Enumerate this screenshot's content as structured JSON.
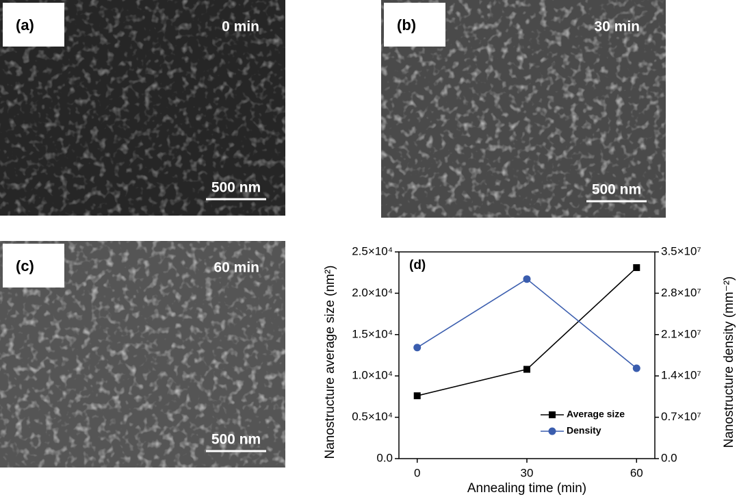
{
  "panels": [
    {
      "label": "(a)",
      "time": "0 min",
      "scale": "500 nm"
    },
    {
      "label": "(b)",
      "time": "30 min",
      "scale": "500 nm"
    },
    {
      "label": "(c)",
      "time": "60 min",
      "scale": "500 nm"
    }
  ],
  "chart_data": {
    "type": "line",
    "panel_label": "(d)",
    "x_label": "Annealing time (min)",
    "y_label": "Nanostructure average size (nm²)",
    "y2_label": "Nanostructure density (mm⁻²)",
    "x": [
      0,
      30,
      60
    ],
    "xlim": [
      -5,
      65
    ],
    "xticks": [
      0,
      30,
      60
    ],
    "ylim": [
      0,
      25000
    ],
    "yticks": [
      {
        "value": 0,
        "label": "0.0"
      },
      {
        "value": 5000,
        "label": "0.5×10⁴"
      },
      {
        "value": 10000,
        "label": "1.0×10⁴"
      },
      {
        "value": 15000,
        "label": "1.5×10⁴"
      },
      {
        "value": 20000,
        "label": "2.0×10⁴"
      },
      {
        "value": 25000,
        "label": "2.5×10⁴"
      }
    ],
    "y2lim": [
      0,
      35000000
    ],
    "y2ticks": [
      {
        "value": 0,
        "label": "0.0"
      },
      {
        "value": 7000000,
        "label": "0.7×10⁷"
      },
      {
        "value": 14000000,
        "label": "1.4×10⁷"
      },
      {
        "value": 21000000,
        "label": "2.1×10⁷"
      },
      {
        "value": 28000000,
        "label": "2.8×10⁷"
      },
      {
        "value": 35000000,
        "label": "3.5×10⁷"
      }
    ],
    "series": [
      {
        "name": "Average size",
        "color": "#000000",
        "marker": "square",
        "values": [
          7600,
          10800,
          23100
        ]
      },
      {
        "name": "Density",
        "color": "#3a5dae",
        "marker": "circle",
        "axis": "y2",
        "values": [
          18800000,
          30400000,
          15300000
        ]
      }
    ]
  }
}
